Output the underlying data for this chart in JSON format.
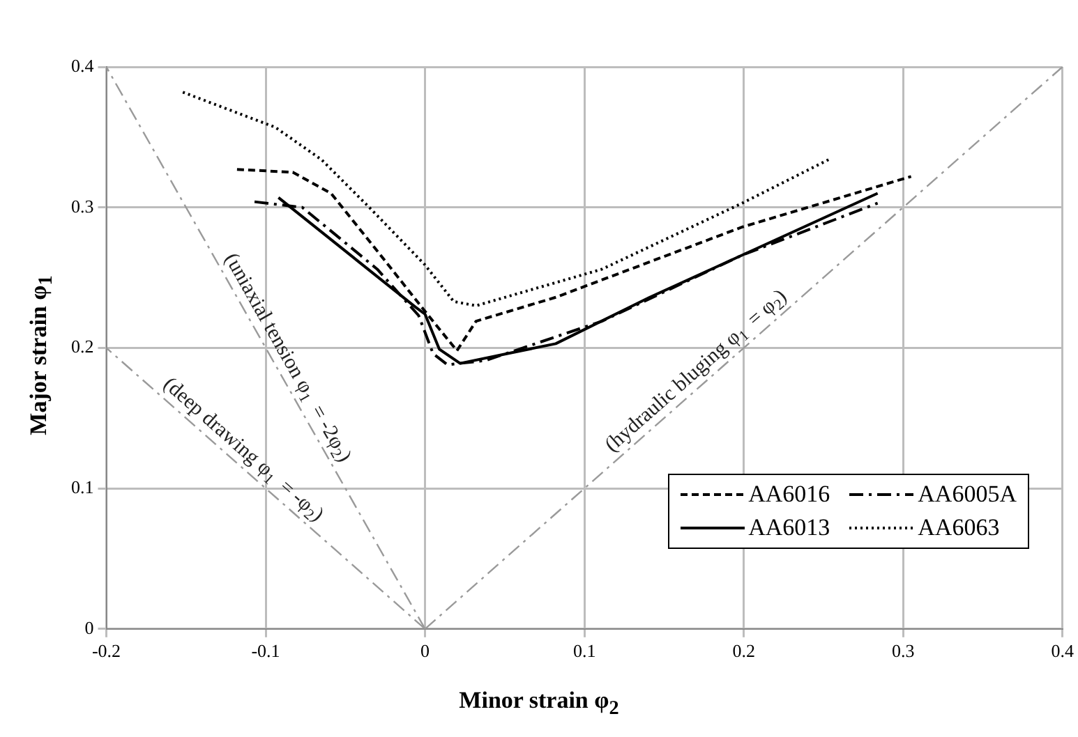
{
  "chart_data": {
    "type": "line",
    "xlabel": "Minor strain φ$_{2}$",
    "ylabel": "Major strain φ$_{1}$",
    "xlim": [
      -0.2,
      0.4
    ],
    "xticks": [
      -0.2,
      -0.1,
      0,
      0.1,
      0.2,
      0.3,
      0.4
    ],
    "ylim": [
      0,
      0.4
    ],
    "yticks": [
      0,
      0.1,
      0.2,
      0.3,
      0.4
    ],
    "grid": true,
    "legend": "bottom right",
    "marker": "none",
    "series": [
      {
        "name": "AA6016",
        "color": "#000000",
        "line_style": "dashed",
        "x": [
          -0.118,
          -0.083,
          -0.059,
          -0.03,
          0,
          0.02,
          0.032,
          0.082,
          0.199,
          0.305
        ],
        "values": [
          0.327,
          0.325,
          0.31,
          0.269,
          0.226,
          0.198,
          0.219,
          0.236,
          0.286,
          0.322
        ]
      },
      {
        "name": "AA6005A",
        "color": "#000000",
        "line_style": "dashdot",
        "x": [
          -0.107,
          -0.077,
          -0.03,
          -0.004,
          0.005,
          0.014,
          0.038,
          0.111,
          0.199,
          0.284
        ],
        "values": [
          0.304,
          0.3,
          0.256,
          0.223,
          0.196,
          0.188,
          0.191,
          0.219,
          0.266,
          0.303
        ]
      },
      {
        "name": "AA6013",
        "color": "#000000",
        "line_style": "solid",
        "x": [
          -0.092,
          -0.006,
          0,
          0.009,
          0.022,
          0.082,
          0.141,
          0.199,
          0.284
        ],
        "values": [
          0.307,
          0.229,
          0.224,
          0.199,
          0.189,
          0.203,
          0.236,
          0.266,
          0.31
        ]
      },
      {
        "name": "AA6063",
        "color": "#000000",
        "line_style": "dotted",
        "x": [
          -0.152,
          -0.094,
          -0.065,
          -0.035,
          0,
          0.018,
          0.032,
          0.111,
          0.199,
          0.255
        ],
        "values": [
          0.382,
          0.357,
          0.334,
          0.3,
          0.259,
          0.233,
          0.23,
          0.256,
          0.303,
          0.335
        ]
      },
      {
        "color": "#9a9a9a",
        "line_style": "dashdot",
        "x": [
          0,
          -0.2
        ],
        "values": [
          0,
          0.2
        ]
      },
      {
        "color": "#9a9a9a",
        "line_style": "dashdot",
        "x": [
          0,
          -0.2
        ],
        "values": [
          0,
          0.4
        ]
      },
      {
        "color": "#9a9a9a",
        "line_style": "dashdot",
        "x": [
          0,
          0.4
        ],
        "values": [
          0,
          0.4
        ]
      }
    ],
    "annotations": [
      "(deep drawing φ$_{1}$ = -φ$_{2}$)",
      "(uniaxial tension φ$_{1}$ = -2φ$_{2}$)",
      "(hydraulic bluging φ$_{1}$ = φ$_{2}$)"
    ]
  }
}
